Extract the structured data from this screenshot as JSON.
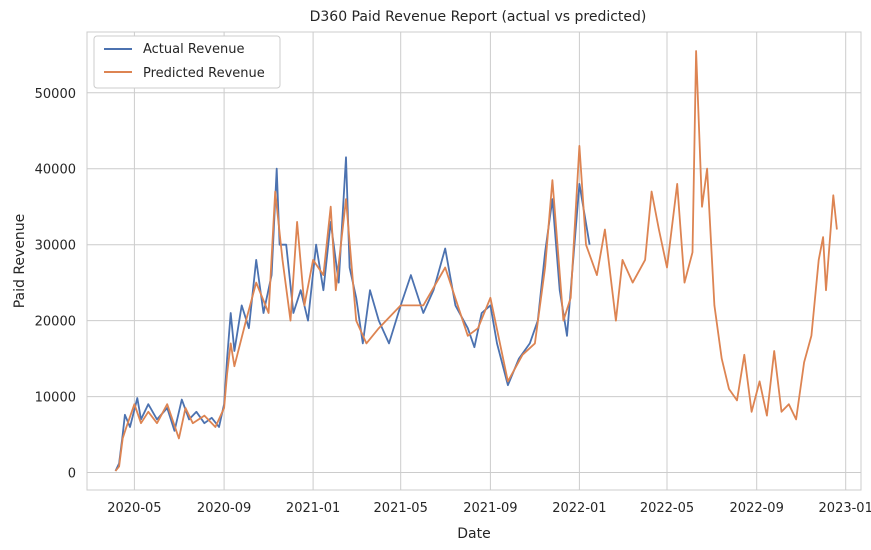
{
  "chart_data": {
    "type": "line",
    "title": "D360 Paid Revenue Report (actual vs predicted)",
    "xlabel": "Date",
    "ylabel": "Paid Revenue",
    "x_axis": {
      "type": "date",
      "range": [
        "2020-02-26",
        "2023-01-22"
      ],
      "ticks": [
        "2020-05-01",
        "2020-09-01",
        "2021-01-01",
        "2021-05-01",
        "2021-09-01",
        "2022-01-01",
        "2022-05-01",
        "2022-09-01",
        "2023-01-01"
      ],
      "tick_labels": [
        "2020-05",
        "2020-09",
        "2021-01",
        "2021-05",
        "2021-09",
        "2022-01",
        "2022-05",
        "2022-09",
        "2023-01"
      ]
    },
    "y_axis": {
      "range": [
        -2300,
        58000
      ],
      "ticks": [
        0,
        10000,
        20000,
        30000,
        40000,
        50000
      ],
      "tick_labels": [
        "0",
        "10000",
        "20000",
        "30000",
        "40000",
        "50000"
      ]
    },
    "grid": true,
    "legend": {
      "position": "top-left"
    },
    "series": [
      {
        "name": "Actual Revenue",
        "color": "#4c72b0",
        "points": [
          [
            "2020-04-05",
            200
          ],
          [
            "2020-04-10",
            1200
          ],
          [
            "2020-04-15",
            5000
          ],
          [
            "2020-04-18",
            7600
          ],
          [
            "2020-04-25",
            6000
          ],
          [
            "2020-05-05",
            9800
          ],
          [
            "2020-05-10",
            7000
          ],
          [
            "2020-05-20",
            9000
          ],
          [
            "2020-06-01",
            7000
          ],
          [
            "2020-06-15",
            8500
          ],
          [
            "2020-06-25",
            5500
          ],
          [
            "2020-07-05",
            9600
          ],
          [
            "2020-07-15",
            7000
          ],
          [
            "2020-07-25",
            8000
          ],
          [
            "2020-08-05",
            6500
          ],
          [
            "2020-08-15",
            7200
          ],
          [
            "2020-08-25",
            6000
          ],
          [
            "2020-09-01",
            9000
          ],
          [
            "2020-09-05",
            15000
          ],
          [
            "2020-09-10",
            21000
          ],
          [
            "2020-09-15",
            16000
          ],
          [
            "2020-09-25",
            22000
          ],
          [
            "2020-10-05",
            19000
          ],
          [
            "2020-10-15",
            28000
          ],
          [
            "2020-10-25",
            21000
          ],
          [
            "2020-11-05",
            26000
          ],
          [
            "2020-11-12",
            40000
          ],
          [
            "2020-11-16",
            30000
          ],
          [
            "2020-11-25",
            30000
          ],
          [
            "2020-12-05",
            21000
          ],
          [
            "2020-12-15",
            24000
          ],
          [
            "2020-12-25",
            20000
          ],
          [
            "2021-01-05",
            30000
          ],
          [
            "2021-01-15",
            24000
          ],
          [
            "2021-01-25",
            33000
          ],
          [
            "2021-02-05",
            25000
          ],
          [
            "2021-02-15",
            41500
          ],
          [
            "2021-02-20",
            27000
          ],
          [
            "2021-03-01",
            23000
          ],
          [
            "2021-03-10",
            17000
          ],
          [
            "2021-03-20",
            24000
          ],
          [
            "2021-04-01",
            20000
          ],
          [
            "2021-04-15",
            17000
          ],
          [
            "2021-05-01",
            22000
          ],
          [
            "2021-05-15",
            26000
          ],
          [
            "2021-06-01",
            21000
          ],
          [
            "2021-06-15",
            24000
          ],
          [
            "2021-07-01",
            29500
          ],
          [
            "2021-07-15",
            22000
          ],
          [
            "2021-08-01",
            19000
          ],
          [
            "2021-08-10",
            16500
          ],
          [
            "2021-08-20",
            21000
          ],
          [
            "2021-09-01",
            22000
          ],
          [
            "2021-09-10",
            17000
          ],
          [
            "2021-09-25",
            11500
          ],
          [
            "2021-10-10",
            15000
          ],
          [
            "2021-10-25",
            17000
          ],
          [
            "2021-11-05",
            20000
          ],
          [
            "2021-11-15",
            29000
          ],
          [
            "2021-11-25",
            36000
          ],
          [
            "2021-12-05",
            24000
          ],
          [
            "2021-12-15",
            18000
          ],
          [
            "2022-01-01",
            38000
          ],
          [
            "2022-01-15",
            30000
          ]
        ]
      },
      {
        "name": "Predicted Revenue",
        "color": "#dd8452",
        "points": [
          [
            "2020-04-05",
            200
          ],
          [
            "2020-04-10",
            800
          ],
          [
            "2020-04-15",
            4500
          ],
          [
            "2020-04-20",
            6000
          ],
          [
            "2020-05-01",
            9000
          ],
          [
            "2020-05-10",
            6500
          ],
          [
            "2020-05-20",
            8000
          ],
          [
            "2020-06-01",
            6500
          ],
          [
            "2020-06-15",
            9000
          ],
          [
            "2020-07-01",
            4500
          ],
          [
            "2020-07-10",
            8500
          ],
          [
            "2020-07-20",
            6500
          ],
          [
            "2020-08-05",
            7500
          ],
          [
            "2020-08-20",
            6000
          ],
          [
            "2020-09-01",
            8500
          ],
          [
            "2020-09-05",
            13000
          ],
          [
            "2020-09-10",
            17000
          ],
          [
            "2020-09-15",
            14000
          ],
          [
            "2020-10-01",
            20000
          ],
          [
            "2020-10-15",
            25000
          ],
          [
            "2020-11-01",
            21000
          ],
          [
            "2020-11-10",
            37000
          ],
          [
            "2020-11-20",
            28000
          ],
          [
            "2020-12-01",
            20000
          ],
          [
            "2020-12-10",
            33000
          ],
          [
            "2020-12-20",
            22000
          ],
          [
            "2021-01-01",
            28000
          ],
          [
            "2021-01-15",
            26000
          ],
          [
            "2021-01-25",
            35000
          ],
          [
            "2021-02-01",
            24000
          ],
          [
            "2021-02-15",
            36000
          ],
          [
            "2021-03-01",
            20000
          ],
          [
            "2021-03-15",
            17000
          ],
          [
            "2021-04-01",
            19000
          ],
          [
            "2021-05-01",
            22000
          ],
          [
            "2021-06-01",
            22000
          ],
          [
            "2021-07-01",
            27000
          ],
          [
            "2021-08-01",
            18000
          ],
          [
            "2021-08-15",
            19000
          ],
          [
            "2021-09-01",
            23000
          ],
          [
            "2021-09-25",
            12000
          ],
          [
            "2021-10-15",
            15500
          ],
          [
            "2021-11-01",
            17000
          ],
          [
            "2021-11-15",
            27000
          ],
          [
            "2021-11-25",
            38500
          ],
          [
            "2021-12-10",
            20000
          ],
          [
            "2021-12-20",
            23000
          ],
          [
            "2022-01-01",
            43000
          ],
          [
            "2022-01-10",
            30000
          ],
          [
            "2022-01-25",
            26000
          ],
          [
            "2022-02-05",
            32000
          ],
          [
            "2022-02-20",
            20000
          ],
          [
            "2022-03-01",
            28000
          ],
          [
            "2022-03-15",
            25000
          ],
          [
            "2022-04-01",
            28000
          ],
          [
            "2022-04-10",
            37000
          ],
          [
            "2022-04-20",
            32000
          ],
          [
            "2022-05-01",
            27000
          ],
          [
            "2022-05-15",
            38000
          ],
          [
            "2022-05-25",
            25000
          ],
          [
            "2022-06-05",
            29000
          ],
          [
            "2022-06-10",
            55500
          ],
          [
            "2022-06-18",
            35000
          ],
          [
            "2022-06-25",
            40000
          ],
          [
            "2022-07-05",
            22000
          ],
          [
            "2022-07-15",
            15000
          ],
          [
            "2022-07-25",
            11000
          ],
          [
            "2022-08-05",
            9500
          ],
          [
            "2022-08-15",
            15500
          ],
          [
            "2022-08-25",
            8000
          ],
          [
            "2022-09-05",
            12000
          ],
          [
            "2022-09-15",
            7500
          ],
          [
            "2022-09-25",
            16000
          ],
          [
            "2022-10-05",
            8000
          ],
          [
            "2022-10-15",
            9000
          ],
          [
            "2022-10-25",
            7000
          ],
          [
            "2022-11-05",
            14500
          ],
          [
            "2022-11-15",
            18000
          ],
          [
            "2022-11-25",
            28000
          ],
          [
            "2022-12-01",
            31000
          ],
          [
            "2022-12-05",
            24000
          ],
          [
            "2022-12-15",
            36500
          ],
          [
            "2022-12-20",
            32000
          ]
        ]
      }
    ]
  }
}
